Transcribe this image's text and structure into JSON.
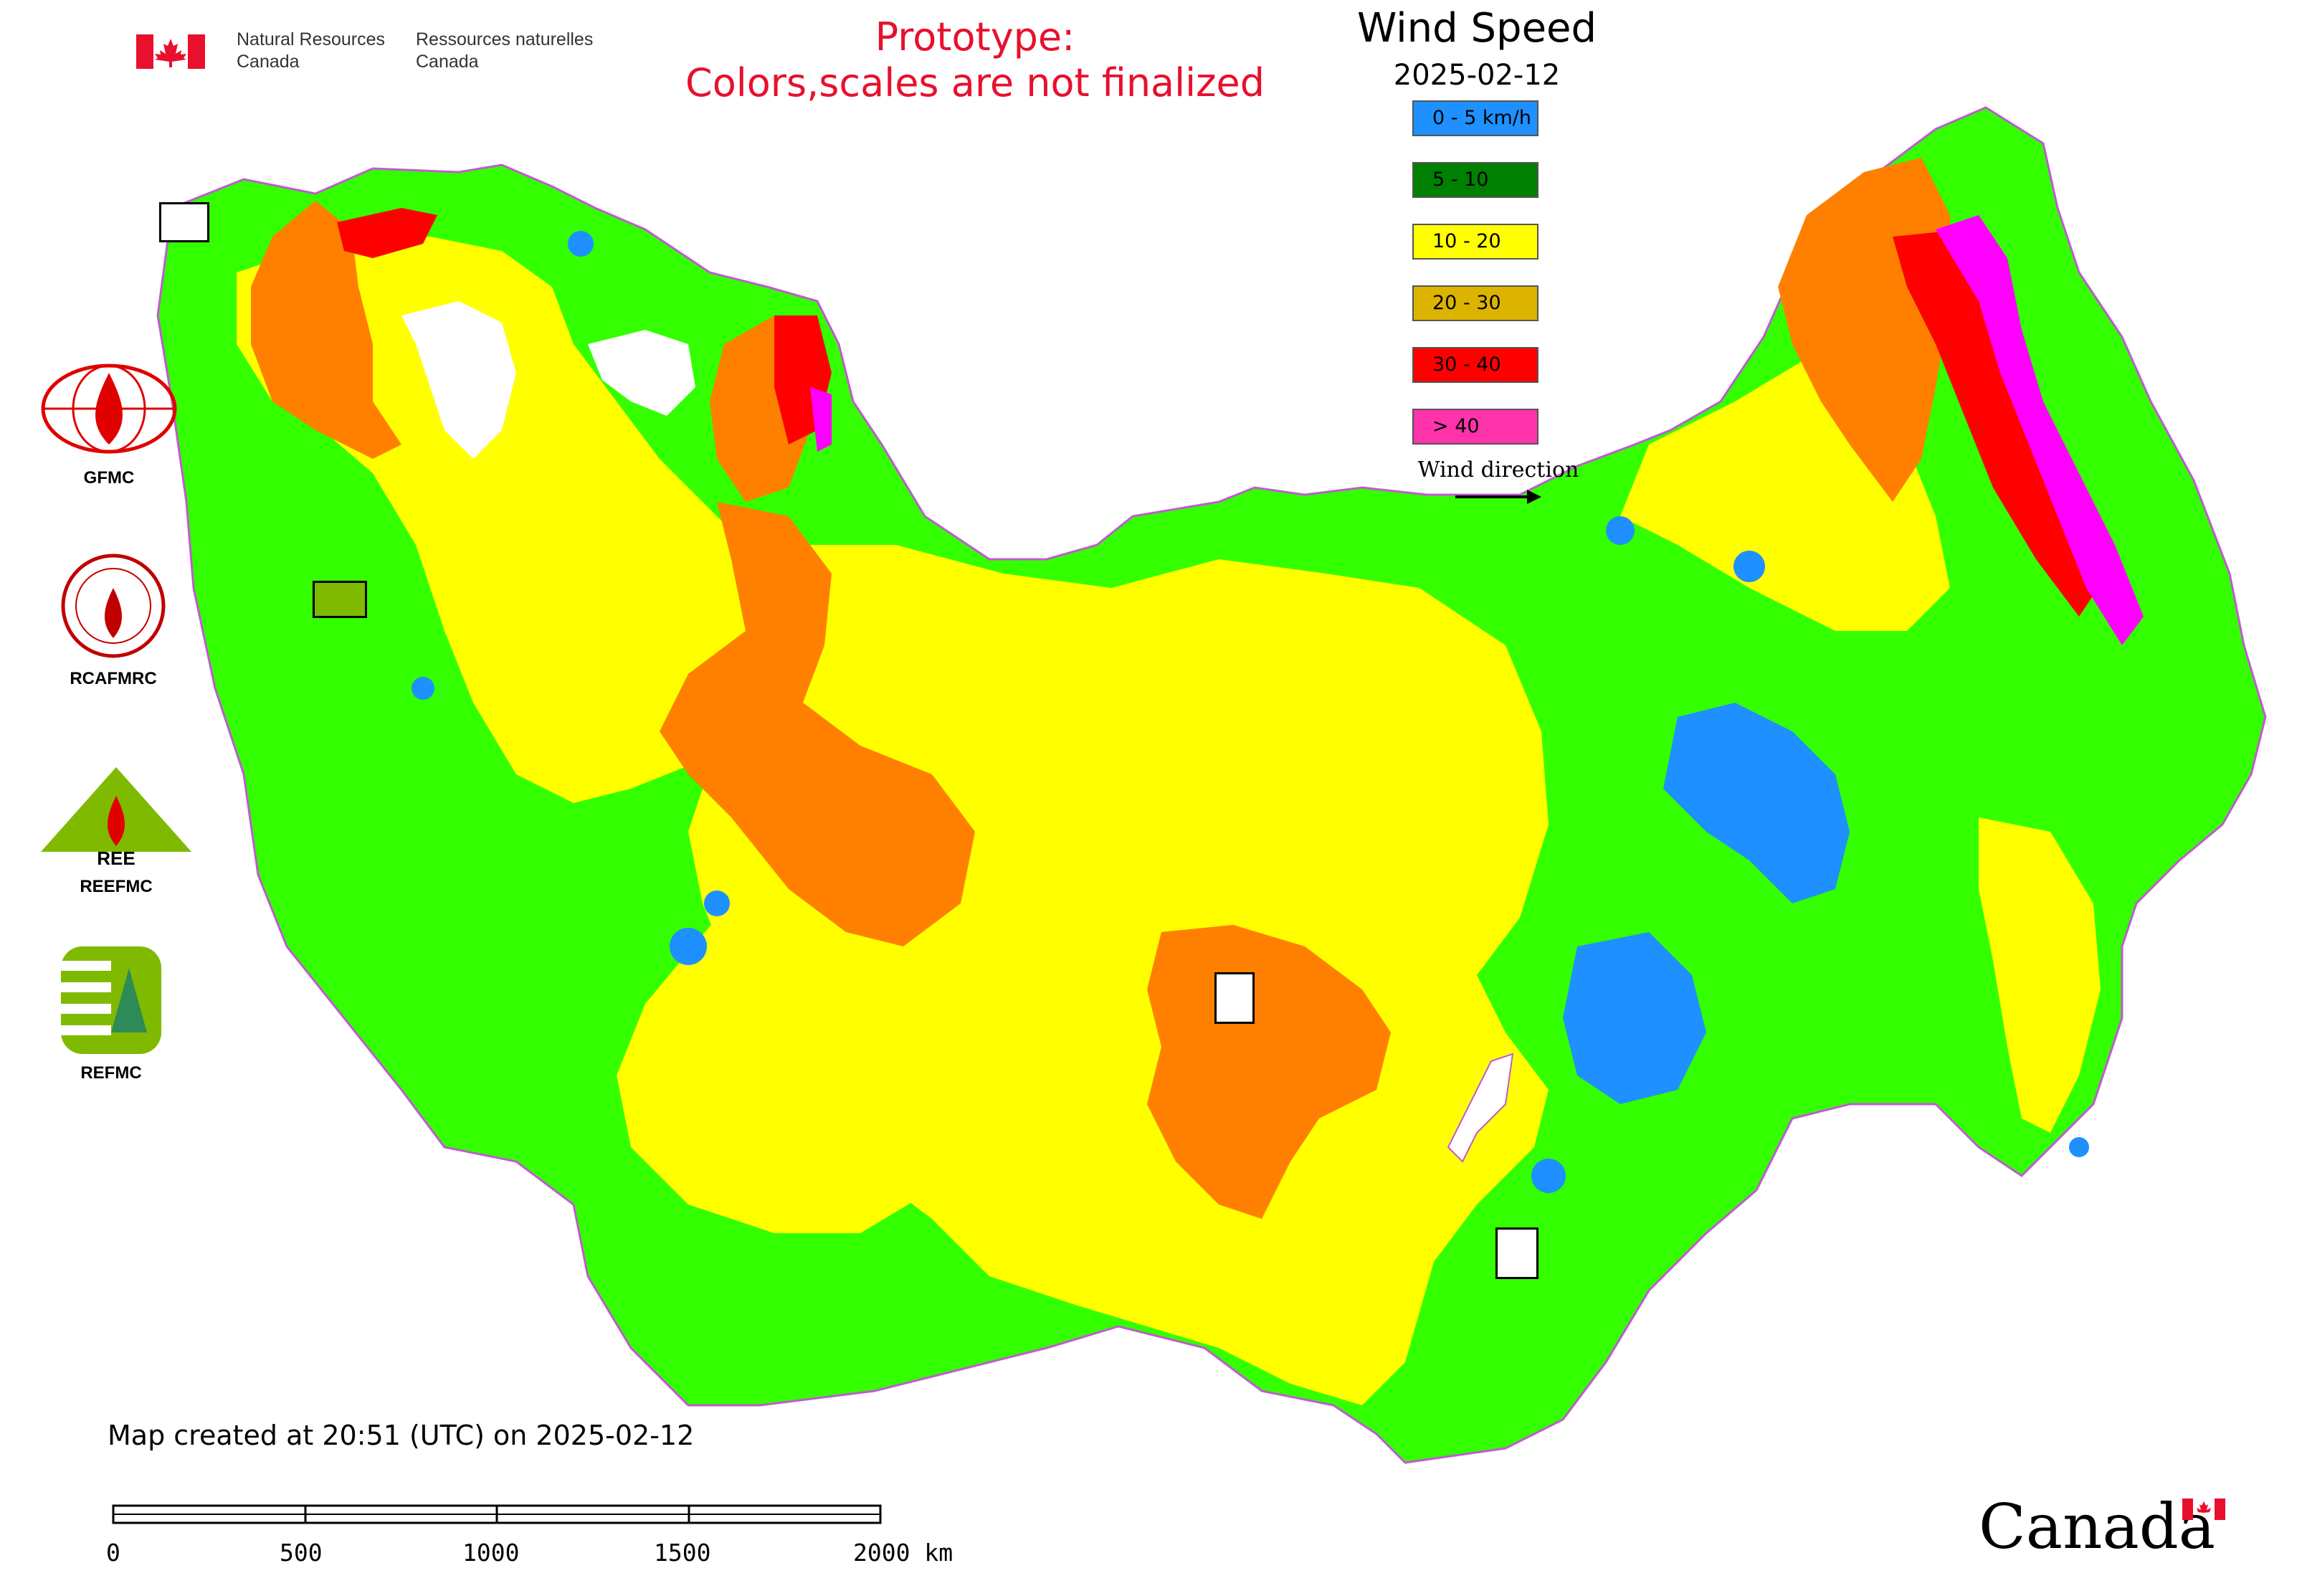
{
  "header": {
    "gov_en_line1": "Natural Resources",
    "gov_en_line2": "Canada",
    "gov_fr_line1": "Ressources naturelles",
    "gov_fr_line2": "Canada",
    "prototype_line1": "Prototype:",
    "prototype_line2": "Colors,scales are not finalized"
  },
  "map_title": {
    "title": "Wind Speed",
    "date": "2025-02-12"
  },
  "legend": {
    "items": [
      {
        "label": "0 - 5 km/h",
        "color": "#1e90ff"
      },
      {
        "label": "5 - 10",
        "color": "#008000"
      },
      {
        "label": "10 - 20",
        "color": "#ffff00"
      },
      {
        "label": "20 - 30",
        "color": "#dcb400"
      },
      {
        "label": "30 - 40",
        "color": "#ff0000"
      },
      {
        "label": "> 40",
        "color": "#ff33aa"
      }
    ],
    "direction_label": "Wind direction"
  },
  "map_colors": {
    "calm": "#1e90ff",
    "light": "#33ff00",
    "moderate": "#ffff00",
    "fresh": "#ff8000",
    "strong": "#ff0000",
    "gale": "#ff00ff",
    "borders": "#c05bd0"
  },
  "organizations": [
    {
      "label": "GFMC"
    },
    {
      "label": "RCAFMRC"
    },
    {
      "label": "REEFMC"
    },
    {
      "label": "REFMC"
    }
  ],
  "footer": {
    "created": "Map created at 20:51 (UTC) on 2025-02-12",
    "scale_labels": [
      "0",
      "500",
      "1000",
      "1500",
      "2000 km"
    ],
    "wordmark": "Canada"
  }
}
